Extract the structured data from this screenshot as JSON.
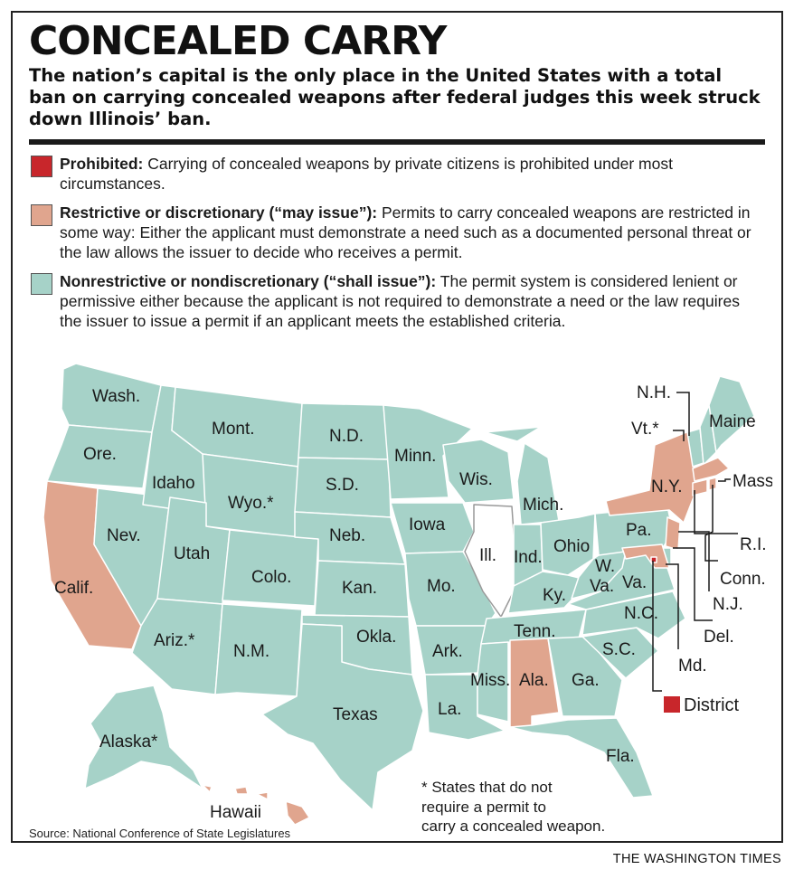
{
  "title": "CONCEALED CARRY",
  "subtitle": "The nation’s capital is the only place in the United States with a total ban on carrying concealed weapons after federal judges this week struck down Illinois’ ban.",
  "colors": {
    "prohibited": "#c8262b",
    "restrictive": "#e0a58e",
    "nonrestrictive": "#a6d2c8",
    "illinois": "#ffffff",
    "border": "#ffffff",
    "text": "#1a1a1a"
  },
  "legend": [
    {
      "key": "prohibited",
      "label": "Prohibited:",
      "text": "Carrying of concealed weapons by private citizens is prohibited under most circumstances."
    },
    {
      "key": "restrictive",
      "label": "Restrictive or discretionary (“may issue”):",
      "text": "Permits to carry concealed weapons are restricted in some way: Either the applicant must demonstrate a need such as a documented personal threat or the law allows the issuer to decide who receives a permit."
    },
    {
      "key": "nonrestrictive",
      "label": "Nonrestrictive or nondiscretionary (“shall issue”):",
      "text": "The permit system is considered lenient or permissive either because the applicant is not required to demonstrate a need or the law requires the issuer to issue a permit if an applicant meets the established criteria."
    }
  ],
  "states": {
    "wash": "Wash.",
    "ore": "Ore.",
    "calif": "Calif.",
    "nev": "Nev.",
    "idaho": "Idaho",
    "mont": "Mont.",
    "wyo": "Wyo.*",
    "utah": "Utah",
    "ariz": "Ariz.*",
    "colo": "Colo.",
    "nm": "N.M.",
    "nd": "N.D.",
    "sd": "S.D.",
    "neb": "Neb.",
    "kan": "Kan.",
    "okla": "Okla.",
    "texas": "Texas",
    "minn": "Minn.",
    "iowa": "Iowa",
    "mo": "Mo.",
    "ark": "Ark.",
    "la": "La.",
    "wis": "Wis.",
    "ill": "Ill.",
    "mich": "Mich.",
    "ind": "Ind.",
    "ohio": "Ohio",
    "ky": "Ky.",
    "tenn": "Tenn.",
    "miss": "Miss.",
    "ala": "Ala.",
    "ga": "Ga.",
    "fla": "Fla.",
    "sc": "S.C.",
    "nc": "N.C.",
    "va": "Va.",
    "wv_1": "W.",
    "wv_2": "Va.",
    "pa": "Pa.",
    "ny": "N.Y.",
    "maine": "Maine",
    "nh": "N.H.",
    "vt": "Vt.*",
    "mass": "Mass.",
    "ri": "R.I.",
    "conn": "Conn.",
    "nj": "N.J.",
    "del": "Del.",
    "md": "Md.",
    "district": "District",
    "alaska": "Alaska*",
    "hawaii": "Hawaii"
  },
  "footnote": [
    "* States that do not",
    "require a permit to",
    "carry a concealed weapon."
  ],
  "source": "Source: National Conference of State Legislatures",
  "credit": "THE WASHINGTON TIMES"
}
